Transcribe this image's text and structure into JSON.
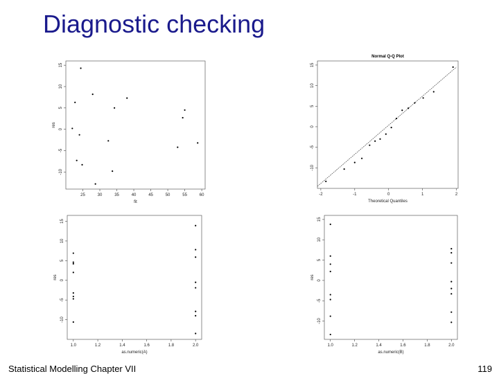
{
  "slide": {
    "title": "Diagnostic checking",
    "footer_left": "Statistical Modelling   Chapter VII",
    "footer_right": "119"
  },
  "chart_data": [
    {
      "type": "scatter",
      "x_label": "fit",
      "y_label": "res",
      "x": [
        24.4,
        22.7,
        27.9,
        38.0,
        34.3,
        55.0,
        54.4,
        21.9,
        24.0,
        32.5,
        52.9,
        58.8,
        23.2,
        24.8,
        33.7,
        28.7
      ],
      "y": [
        14.3,
        6.3,
        8.2,
        7.3,
        5.0,
        4.5,
        2.7,
        0.2,
        -1.3,
        -2.7,
        -4.2,
        -3.2,
        -7.3,
        -8.3,
        -9.8,
        -12.8
      ],
      "xlim": [
        20,
        61
      ],
      "ylim": [
        -14,
        16
      ],
      "xticks": [
        25,
        30,
        35,
        40,
        45,
        50,
        55,
        60
      ],
      "yticks": [
        -10,
        -5,
        0,
        5,
        10,
        15
      ],
      "color": "#000000"
    },
    {
      "type": "scatter",
      "title": "Normal Q-Q Plot",
      "x_label": "Theoretical Quantiles",
      "x": [
        -1.85,
        -1.31,
        -1.0,
        -0.79,
        -0.56,
        -0.4,
        -0.25,
        -0.08,
        0.08,
        0.23,
        0.4,
        0.58,
        0.77,
        1.02,
        1.33,
        1.9
      ],
      "y": [
        -13.3,
        -10.3,
        -8.7,
        -7.7,
        -4.5,
        -3.5,
        -3.0,
        -1.8,
        -0.2,
        2.0,
        4.0,
        4.5,
        5.8,
        7.0,
        8.5,
        14.5
      ],
      "qq_line": {
        "x": [
          -2.1,
          2.0
        ],
        "y": [
          -14.5,
          14.5
        ]
      },
      "xlim": [
        -2.1,
        2.05
      ],
      "ylim": [
        -15,
        16
      ],
      "xticks": [
        -2,
        -1,
        0,
        1,
        2
      ],
      "yticks": [
        -10,
        -5,
        0,
        5,
        10,
        15
      ],
      "color": "#000000"
    },
    {
      "type": "scatter",
      "x_label": "as.numeric(A)",
      "y_label": "res",
      "x": [
        1,
        1,
        1,
        1,
        1,
        1,
        1,
        1,
        2,
        2,
        2,
        2,
        2,
        2,
        2,
        2
      ],
      "y": [
        6.9,
        4.6,
        4.2,
        2.0,
        -3.2,
        -4.1,
        -4.7,
        -10.6,
        13.9,
        7.8,
        5.9,
        -0.5,
        -1.9,
        -7.9,
        -9.0,
        -13.5
      ],
      "xlim": [
        0.95,
        2.05
      ],
      "ylim": [
        -15,
        16.5
      ],
      "xticks": [
        {
          "value": 1,
          "label": "1.0"
        },
        1.2,
        1.4,
        1.6,
        1.8,
        {
          "value": 2,
          "label": "2.0"
        }
      ],
      "yticks": [
        -10,
        -5,
        0,
        5,
        10,
        15
      ],
      "color": "#000000"
    },
    {
      "type": "scatter",
      "x_label": "as.numeric(B)",
      "y_label": "res",
      "x": [
        1,
        1,
        1,
        1,
        1,
        1,
        1,
        1,
        2,
        2,
        2,
        2,
        2,
        2,
        2,
        2
      ],
      "y": [
        13.8,
        6.0,
        4.0,
        2.2,
        -3.5,
        -4.7,
        -8.8,
        -13.3,
        7.8,
        6.8,
        4.3,
        -0.3,
        -2.0,
        -3.3,
        -7.8,
        -10.3
      ],
      "xlim": [
        0.95,
        2.05
      ],
      "ylim": [
        -14.5,
        16
      ],
      "xticks": [
        {
          "value": 1,
          "label": "1.0"
        },
        1.2,
        1.4,
        1.6,
        1.8,
        {
          "value": 2,
          "label": "2.0"
        }
      ],
      "yticks": [
        -10,
        -5,
        0,
        5,
        10,
        15
      ],
      "color": "#000000"
    }
  ]
}
